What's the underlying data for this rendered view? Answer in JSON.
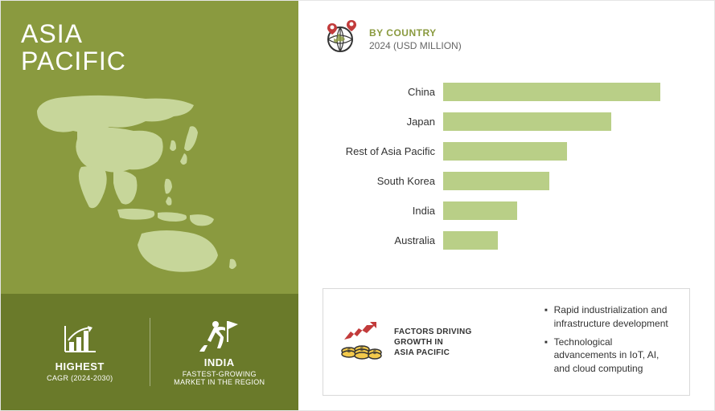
{
  "region": {
    "title_line1": "ASIA",
    "title_line2": "PACIFIC",
    "map_fill": "#c7d69a",
    "panel_top_bg": "#8a9a3f",
    "panel_bottom_bg": "#6a7a2a"
  },
  "stats": [
    {
      "title": "HIGHEST",
      "sub": "CAGR (2024-2030)"
    },
    {
      "title": "INDIA",
      "sub": "FASTEST-GROWING\nMARKET IN THE REGION"
    }
  ],
  "chart": {
    "type": "bar",
    "header_line1": "BY COUNTRY",
    "header_line2": "2024 (USD MILLION)",
    "header_color": "#8a9a3f",
    "bar_color": "#b9cf87",
    "label_fontsize": 13,
    "label_color": "#333333",
    "max_value": 100,
    "rows": [
      {
        "label": "China",
        "value": 88
      },
      {
        "label": "Japan",
        "value": 68
      },
      {
        "label": "Rest of Asia Pacific",
        "value": 50
      },
      {
        "label": "South Korea",
        "value": 43
      },
      {
        "label": "India",
        "value": 30
      },
      {
        "label": "Australia",
        "value": 22
      }
    ]
  },
  "factors": {
    "title": "FACTORS DRIVING\nGROWTH IN\nASIA PACIFIC",
    "items": [
      "Rapid industrialization and infrastructure development",
      "Technological advancements in IoT, AI, and cloud computing"
    ]
  },
  "colors": {
    "white": "#ffffff",
    "border": "#d9d9d9",
    "text": "#333333",
    "icon_accent": "#c23b3b",
    "icon_coin": "#f2c94c"
  }
}
